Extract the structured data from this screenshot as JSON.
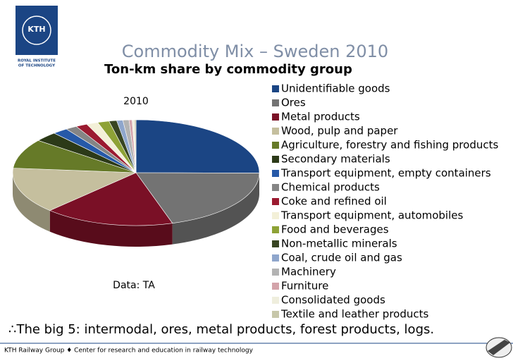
{
  "logo": {
    "text": "KTH",
    "caption": [
      "ROYAL INSTITUTE",
      "OF TECHNOLOGY"
    ]
  },
  "chart_data": {
    "type": "pie",
    "title": "Commodity Mix – Sweden 2010",
    "subtitle": "Ton-km share by commodity group",
    "label": "2010",
    "source": "Data: TA",
    "categories": [
      "Unidentifiable goods",
      "Ores",
      "Metal products",
      "Wood, pulp and paper",
      "Agriculture, forestry and fishing products",
      "Secondary materials",
      "Transport equipment, empty containers",
      "Chemical products",
      "Coke and refined oil",
      "Transport equipment, automobiles",
      "Food and beverages",
      "Non-metallic minerals",
      "Coal, crude oil and gas",
      "Machinery",
      "Furniture",
      "Consolidated goods",
      "Textile and leather products"
    ],
    "values": [
      25,
      20,
      17,
      14,
      9,
      3,
      2,
      1.5,
      1.5,
      1.5,
      1.5,
      1,
      0.8,
      0.8,
      0.4,
      0.3,
      0.2
    ],
    "colors": [
      "#1b4584",
      "#737373",
      "#7a1026",
      "#c5bf9e",
      "#667a28",
      "#2c3a18",
      "#2659a8",
      "#858585",
      "#9b1a30",
      "#f3f0d8",
      "#8ea236",
      "#384522",
      "#8fa6cc",
      "#b3b3b3",
      "#d3a3aa",
      "#efeedd",
      "#c7c7aa"
    ]
  },
  "note": "∴The big 5: intermodal, ores, metal products, forest products, logs.",
  "footer": "KTH Railway Group ♦ Center for research and education in railway technology"
}
